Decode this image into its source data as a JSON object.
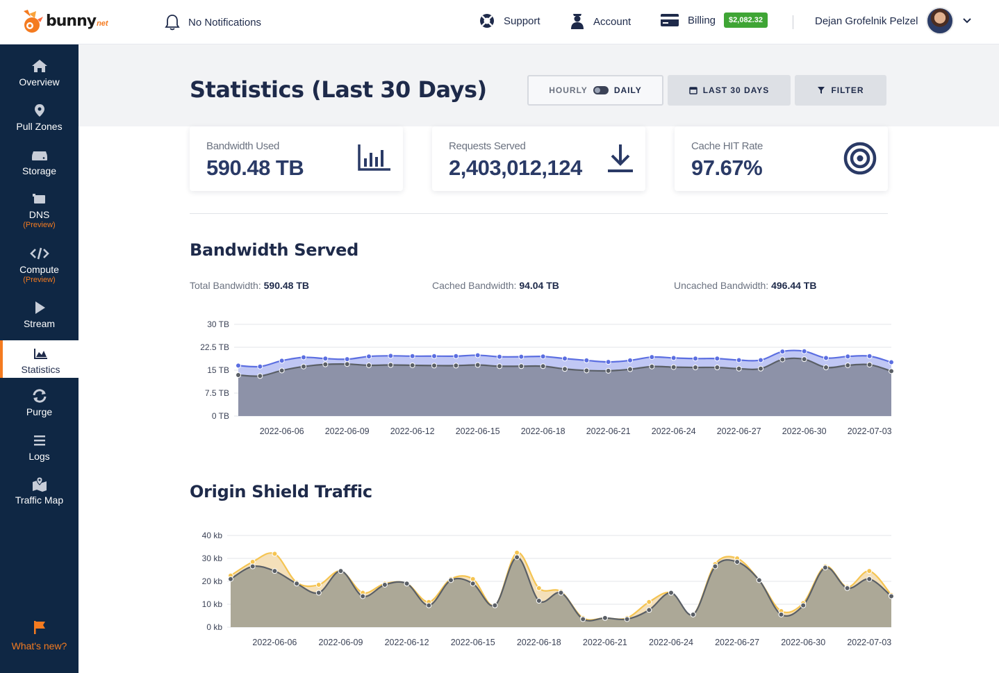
{
  "topbar": {
    "logo_text": "bunny",
    "logo_suffix": "net",
    "notifications": "No Notifications",
    "support": "Support",
    "account": "Account",
    "billing": "Billing",
    "billing_balance": "$2,082.32",
    "user_name": "Dejan Grofelnik Pelzel"
  },
  "sidebar": {
    "items": [
      {
        "label": "Overview",
        "icon": "home-icon"
      },
      {
        "label": "Pull Zones",
        "icon": "map-pin-icon"
      },
      {
        "label": "Storage",
        "icon": "drive-icon"
      },
      {
        "label": "DNS",
        "icon": "dns-icon",
        "tag": "(Preview)"
      },
      {
        "label": "Compute",
        "icon": "code-icon",
        "tag": "(Preview)"
      },
      {
        "label": "Stream",
        "icon": "play-icon"
      },
      {
        "label": "Statistics",
        "icon": "chart-icon",
        "active": true
      },
      {
        "label": "Purge",
        "icon": "refresh-icon"
      },
      {
        "label": "Logs",
        "icon": "list-icon"
      },
      {
        "label": "Traffic Map",
        "icon": "map-icon"
      }
    ],
    "whats_new": "What's new?"
  },
  "header": {
    "title": "Statistics (Last 30 Days)",
    "toggle_off": "HOURLY",
    "toggle_on": "DAILY",
    "range": "LAST 30 DAYS",
    "filter": "FILTER"
  },
  "cards": [
    {
      "label": "Bandwidth Used",
      "value": "590.48 TB",
      "icon": "bar-chart-icon"
    },
    {
      "label": "Requests Served",
      "value": "2,403,012,124",
      "icon": "download-icon"
    },
    {
      "label": "Cache HIT Rate",
      "value": "97.67%",
      "icon": "target-icon"
    }
  ],
  "bandwidth": {
    "title": "Bandwidth Served",
    "total_label": "Total Bandwidth:",
    "total_value": "590.48 TB",
    "cached_label": "Cached Bandwidth:",
    "cached_value": "94.04 TB",
    "uncached_label": "Uncached Bandwidth:",
    "uncached_value": "496.44 TB"
  },
  "origin": {
    "title": "Origin Shield Traffic"
  },
  "colors": {
    "accent": "#f47b20",
    "sidebar": "#0f2744",
    "billing_badge": "#3fa535",
    "series_blue": "#5b6ee1",
    "series_gray": "#5a5f66",
    "series_yellow": "#f5c451"
  },
  "chart_data": [
    {
      "type": "area",
      "title": "Bandwidth Served",
      "x": [
        "2022-06-04",
        "2022-06-05",
        "2022-06-06",
        "2022-06-07",
        "2022-06-08",
        "2022-06-09",
        "2022-06-10",
        "2022-06-11",
        "2022-06-12",
        "2022-06-13",
        "2022-06-14",
        "2022-06-15",
        "2022-06-16",
        "2022-06-17",
        "2022-06-18",
        "2022-06-19",
        "2022-06-20",
        "2022-06-21",
        "2022-06-22",
        "2022-06-23",
        "2022-06-24",
        "2022-06-25",
        "2022-06-26",
        "2022-06-27",
        "2022-06-28",
        "2022-06-29",
        "2022-06-30",
        "2022-07-01",
        "2022-07-02",
        "2022-07-03",
        "2022-07-04"
      ],
      "x_tick_labels": [
        "2022-06-06",
        "2022-06-09",
        "2022-06-12",
        "2022-06-15",
        "2022-06-18",
        "2022-06-21",
        "2022-06-24",
        "2022-06-27",
        "2022-06-30",
        "2022-07-03"
      ],
      "y_tick_labels": [
        "0 TB",
        "7.5 TB",
        "15 TB",
        "22.5 TB",
        "30 TB"
      ],
      "ylim": [
        0,
        30
      ],
      "series": [
        {
          "values": [
            16.5,
            16.2,
            18.1,
            19.2,
            18.8,
            18.6,
            19.5,
            19.7,
            19.6,
            19.6,
            19.6,
            19.9,
            19.4,
            19.4,
            19.5,
            18.8,
            18.2,
            17.7,
            18.2,
            19.3,
            19.0,
            18.8,
            18.8,
            18.3,
            18.3,
            21.1,
            21.2,
            19.0,
            19.5,
            19.6,
            17.6
          ]
        },
        {
          "values": [
            13.4,
            13.1,
            14.9,
            16.2,
            16.9,
            17.0,
            16.6,
            16.7,
            16.6,
            16.5,
            16.5,
            16.7,
            16.3,
            16.3,
            16.3,
            15.4,
            14.9,
            14.8,
            15.3,
            16.2,
            16.0,
            15.9,
            15.9,
            15.5,
            15.5,
            18.5,
            18.6,
            15.9,
            16.6,
            16.8,
            14.7
          ]
        }
      ]
    },
    {
      "type": "area",
      "title": "Origin Shield Traffic",
      "x": [
        "2022-06-04",
        "2022-06-05",
        "2022-06-06",
        "2022-06-07",
        "2022-06-08",
        "2022-06-09",
        "2022-06-10",
        "2022-06-11",
        "2022-06-12",
        "2022-06-13",
        "2022-06-14",
        "2022-06-15",
        "2022-06-16",
        "2022-06-17",
        "2022-06-18",
        "2022-06-19",
        "2022-06-20",
        "2022-06-21",
        "2022-06-22",
        "2022-06-23",
        "2022-06-24",
        "2022-06-25",
        "2022-06-26",
        "2022-06-27",
        "2022-06-28",
        "2022-06-29",
        "2022-06-30",
        "2022-07-01",
        "2022-07-02",
        "2022-07-03",
        "2022-07-04"
      ],
      "x_tick_labels": [
        "2022-06-06",
        "2022-06-09",
        "2022-06-12",
        "2022-06-15",
        "2022-06-18",
        "2022-06-21",
        "2022-06-24",
        "2022-06-27",
        "2022-06-30",
        "2022-07-03"
      ],
      "y_tick_labels": [
        "0 kb",
        "10 kb",
        "20 kb",
        "30 kb",
        "40 kb"
      ],
      "ylim": [
        0,
        40
      ],
      "series": [
        {
          "values": [
            22.5,
            28.5,
            32.0,
            19.5,
            18.5,
            24.5,
            15.0,
            19.0,
            19.0,
            11.0,
            21.0,
            21.0,
            9.5,
            32.5,
            17.0,
            15.5,
            4.0,
            4.0,
            4.0,
            11.0,
            15.0,
            5.5,
            27.5,
            30.0,
            20.5,
            7.0,
            10.5,
            26.5,
            17.5,
            24.5,
            14.0
          ]
        },
        {
          "values": [
            21.0,
            26.5,
            24.5,
            19.0,
            15.0,
            24.5,
            13.5,
            18.5,
            19.0,
            9.5,
            20.5,
            19.0,
            9.5,
            30.5,
            11.5,
            15.0,
            3.5,
            4.0,
            3.5,
            7.5,
            15.0,
            5.5,
            26.5,
            28.5,
            20.5,
            5.5,
            9.5,
            26.0,
            17.0,
            21.0,
            13.5
          ]
        }
      ]
    }
  ]
}
